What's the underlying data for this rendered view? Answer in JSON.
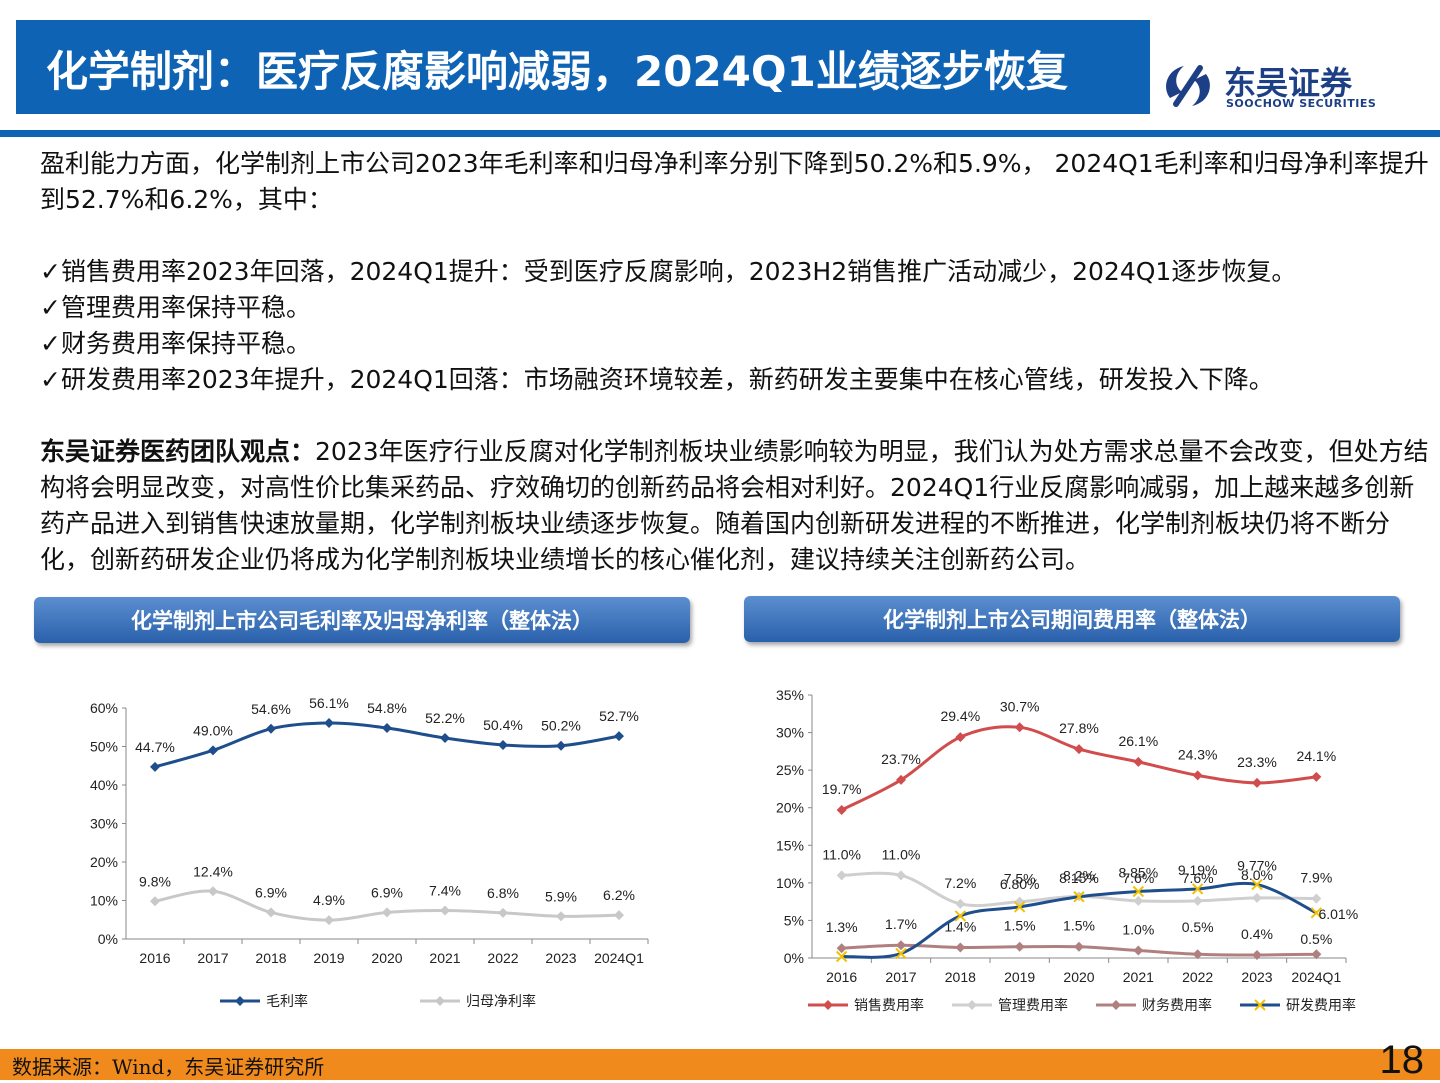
{
  "header": {
    "title": "化学制剂：医疗反腐影响减弱，2024Q1业绩逐步恢复",
    "logo_name": "东吴证券",
    "logo_en": "SOOCHOW SECURITIES"
  },
  "body": {
    "intro": "盈利能力方面，化学制剂上市公司2023年毛利率和归母净利率分别下降到50.2%和5.9%， 2024Q1毛利率和归母净利率提升到52.7%和6.2%，其中：",
    "bullets": [
      "✓销售费用率2023年回落，2024Q1提升：受到医疗反腐影响，2023H2销售推广活动减少，2024Q1逐步恢复。",
      "✓管理费用率保持平稳。",
      "✓财务费用率保持平稳。",
      "✓研发费用率2023年提升，2024Q1回落：市场融资环境较差，新药研发主要集中在核心管线，研发投入下降。"
    ],
    "view_title": "东吴证券医药团队观点：",
    "view_text": "2023年医疗行业反腐对化学制剂板块业绩影响较为明显，我们认为处方需求总量不会改变，但处方结构将会明显改变，对高性价比集采药品、疗效确切的创新药品将会相对利好。2024Q1行业反腐影响减弱，加上越来越多创新药产品进入到销售快速放量期，化学制剂板块业绩逐步恢复。随着国内创新研发进程的不断推进，化学制剂板块仍将不断分化，创新药研发企业仍将成为化学制剂板块业绩增长的核心催化剂，建议持续关注创新药公司。"
  },
  "chart_data": [
    {
      "type": "line",
      "title": "化学制剂上市公司毛利率及归母净利率（整体法）",
      "categories": [
        "2016",
        "2017",
        "2018",
        "2019",
        "2020",
        "2021",
        "2022",
        "2023",
        "2024Q1"
      ],
      "yticks": [
        "0%",
        "10%",
        "20%",
        "30%",
        "40%",
        "50%",
        "60%"
      ],
      "ylim": [
        0,
        60
      ],
      "series": [
        {
          "name": "毛利率",
          "color": "#1f4e8c",
          "marker": "diamond",
          "values": [
            44.7,
            49.0,
            54.6,
            56.1,
            54.8,
            52.2,
            50.4,
            50.2,
            52.7
          ],
          "labels": [
            "44.7%",
            "49.0%",
            "54.6%",
            "56.1%",
            "54.8%",
            "52.2%",
            "50.4%",
            "50.2%",
            "52.7%"
          ]
        },
        {
          "name": "归母净利率",
          "color": "#c8c8c8",
          "marker": "diamond",
          "values": [
            9.8,
            12.4,
            6.9,
            4.9,
            6.9,
            7.4,
            6.8,
            5.9,
            6.2
          ],
          "labels": [
            "9.8%",
            "12.4%",
            "6.9%",
            "4.9%",
            "6.9%",
            "7.4%",
            "6.8%",
            "5.9%",
            "6.2%"
          ]
        }
      ]
    },
    {
      "type": "line",
      "title": "化学制剂上市公司期间费用率（整体法）",
      "categories": [
        "2016",
        "2017",
        "2018",
        "2019",
        "2020",
        "2021",
        "2022",
        "2023",
        "2024Q1"
      ],
      "yticks": [
        "0%",
        "5%",
        "10%",
        "15%",
        "20%",
        "25%",
        "30%",
        "35%"
      ],
      "ylim": [
        0,
        35
      ],
      "series": [
        {
          "name": "销售费用率",
          "color": "#d14d4d",
          "marker": "diamond",
          "values": [
            19.7,
            23.7,
            29.4,
            30.7,
            27.8,
            26.1,
            24.3,
            23.3,
            24.1
          ],
          "labels": [
            "19.7%",
            "23.7%",
            "29.4%",
            "30.7%",
            "27.8%",
            "26.1%",
            "24.3%",
            "23.3%",
            "24.1%"
          ]
        },
        {
          "name": "管理费用率",
          "color": "#cfcfcf",
          "marker": "diamond",
          "values": [
            11.0,
            11.0,
            7.2,
            7.5,
            8.2,
            7.6,
            7.6,
            8.0,
            7.9
          ],
          "labels": [
            "11.0%",
            "11.0%",
            "7.2%",
            "7.5%",
            "8.2%",
            "7.6%",
            "7.6%",
            "8.0%",
            "7.9%"
          ]
        },
        {
          "name": "财务费用率",
          "color": "#b08080",
          "marker": "diamond",
          "values": [
            1.3,
            1.7,
            1.4,
            1.5,
            1.5,
            1.0,
            0.5,
            0.4,
            0.5
          ],
          "labels": [
            "1.3%",
            "1.7%",
            "1.4%",
            "1.5%",
            "1.5%",
            "1.0%",
            "0.5%",
            "0.4%",
            "0.5%"
          ]
        },
        {
          "name": "研发费用率",
          "color": "#1f4e8c",
          "marker": "x",
          "values": [
            0.2,
            0.6,
            5.6,
            6.8,
            8.15,
            8.85,
            9.19,
            9.77,
            6.01
          ],
          "labels": [
            "",
            "",
            "",
            "6.80%",
            "8.15%",
            "8.85%",
            "9.19%",
            "9.77%",
            "6.01%"
          ]
        }
      ]
    }
  ],
  "footer": {
    "source": "数据来源：Wind，东吴证券研究所",
    "page": "18"
  }
}
